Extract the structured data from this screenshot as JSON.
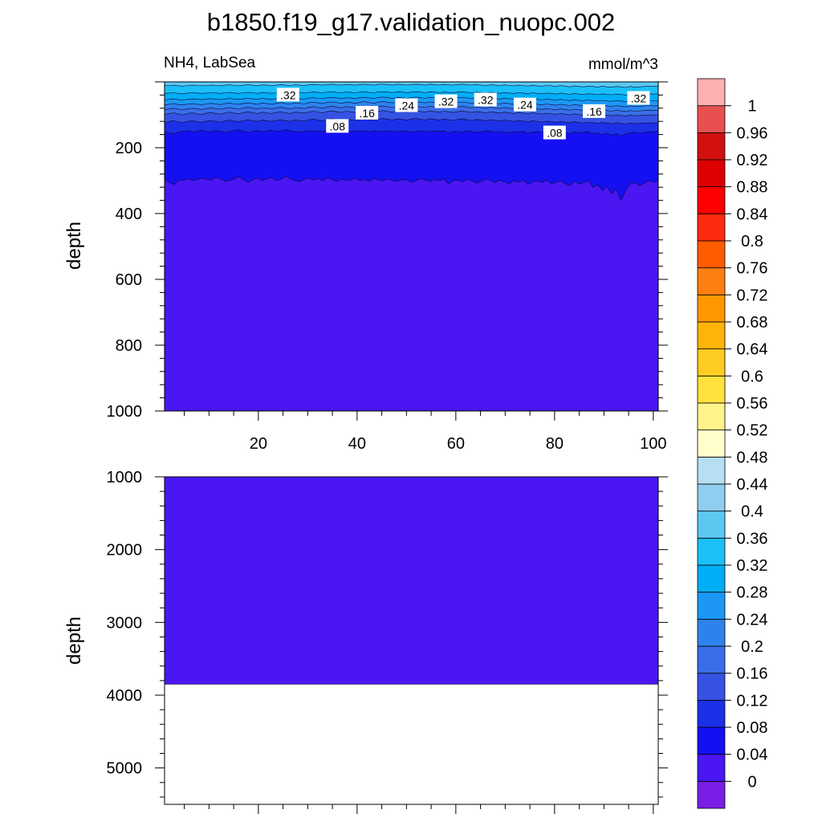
{
  "title": "b1850.f19_g17.validation_nuopc.002",
  "chart_data": [
    {
      "type": "contour",
      "panel": "upper",
      "left_label": "NH4, LabSea",
      "right_label": "mmol/m^3",
      "ylabel": "depth",
      "xlim": [
        1,
        101
      ],
      "ylim": [
        0,
        1000
      ],
      "y_reversed": true,
      "xticks": [
        20,
        40,
        60,
        80,
        100
      ],
      "yticks": [
        200,
        400,
        600,
        800,
        1000
      ],
      "contour_labels": [
        {
          "text": ".32",
          "x": 26,
          "depth": 40
        },
        {
          "text": ".16",
          "x": 42,
          "depth": 95
        },
        {
          "text": ".08",
          "x": 36,
          "depth": 135
        },
        {
          "text": ".24",
          "x": 50,
          "depth": 72
        },
        {
          "text": ".32",
          "x": 58,
          "depth": 60
        },
        {
          "text": ".32",
          "x": 66,
          "depth": 55
        },
        {
          "text": ".24",
          "x": 74,
          "depth": 70
        },
        {
          "text": ".08",
          "x": 80,
          "depth": 155
        },
        {
          "text": ".16",
          "x": 88,
          "depth": 90
        },
        {
          "text": ".32",
          "x": 97,
          "depth": 50
        }
      ],
      "band_lower_boundaries_depth": {
        "0.04": [
          295,
          305,
          312,
          300,
          298,
          295,
          300,
          297,
          292,
          296,
          298,
          290,
          294,
          302,
          300,
          295,
          288,
          297,
          305,
          296,
          292,
          300,
          294,
          290,
          300,
          296,
          287,
          295,
          300,
          303,
          296,
          292,
          298,
          294,
          300,
          290,
          297,
          303,
          295,
          300,
          298,
          293,
          300,
          296,
          302,
          294,
          298,
          300,
          295,
          300,
          303,
          296,
          298,
          305,
          300,
          294,
          298,
          302,
          296,
          300,
          295,
          310,
          300,
          298,
          304,
          296,
          300,
          308,
          302,
          295,
          300,
          306,
          298,
          304,
          310,
          300,
          305,
          298,
          312,
          304,
          300,
          306,
          298,
          310,
          305,
          300,
          308,
          315,
          302,
          310,
          306,
          300,
          320,
          312,
          330,
          318,
          340,
          325,
          360,
          330,
          310,
          305,
          315,
          308,
          300,
          305,
          300
        ],
        "0.08": [
          150,
          155,
          158,
          152,
          150,
          148,
          152,
          150,
          147,
          150,
          152,
          148,
          150,
          153,
          150,
          148,
          146,
          150,
          154,
          150,
          148,
          151,
          149,
          147,
          150,
          149,
          146,
          149,
          151,
          153,
          150,
          148,
          150,
          149,
          151,
          148,
          150,
          152,
          149,
          151,
          150,
          148,
          151,
          149,
          152,
          149,
          150,
          151,
          149,
          150,
          152,
          149,
          150,
          153,
          151,
          149,
          150,
          152,
          149,
          151,
          149,
          155,
          151,
          150,
          153,
          149,
          151,
          154,
          152,
          149,
          150,
          153,
          150,
          152,
          155,
          151,
          153,
          150,
          156,
          152,
          151,
          153,
          150,
          155,
          152,
          151,
          154,
          157,
          152,
          155,
          153,
          151,
          158,
          155,
          160,
          156,
          162,
          157,
          165,
          158,
          155,
          153,
          156,
          154,
          151,
          152,
          150
        ],
        "0.12": [
          125,
          120,
          118,
          122,
          124,
          120,
          118,
          121,
          123,
          119,
          117,
          120,
          122,
          118,
          116,
          119,
          121,
          117,
          115,
          118,
          120,
          116,
          118,
          120,
          117,
          115,
          118,
          120,
          116,
          117,
          119,
          115,
          113,
          116,
          118,
          114,
          112,
          115,
          117,
          113,
          115,
          117,
          114,
          112,
          115,
          117,
          113,
          111,
          114,
          116,
          112,
          114,
          116,
          113,
          111,
          114,
          116,
          112,
          114,
          116,
          113,
          115,
          117,
          114,
          112,
          115,
          117,
          114,
          116,
          118,
          115,
          117,
          119,
          116,
          118,
          120,
          117,
          119,
          121,
          118,
          120,
          122,
          119,
          121,
          123,
          120,
          122,
          124,
          121,
          123,
          125,
          122,
          124,
          126,
          123,
          125,
          127,
          124,
          126,
          128,
          125,
          127,
          126,
          125,
          124,
          125,
          124
        ],
        "0.16": [
          100,
          96,
          94,
          98,
          100,
          96,
          94,
          97,
          99,
          95,
          93,
          96,
          98,
          94,
          92,
          95,
          97,
          93,
          91,
          94,
          96,
          92,
          94,
          96,
          93,
          91,
          94,
          96,
          92,
          93,
          95,
          91,
          89,
          92,
          94,
          90,
          88,
          91,
          93,
          89,
          91,
          93,
          90,
          88,
          91,
          93,
          89,
          87,
          90,
          92,
          88,
          90,
          92,
          89,
          87,
          90,
          92,
          88,
          90,
          92,
          89,
          91,
          93,
          90,
          88,
          91,
          93,
          90,
          92,
          94,
          91,
          93,
          95,
          92,
          94,
          96,
          93,
          95,
          97,
          94,
          96,
          98,
          95,
          97,
          99,
          96,
          98,
          100,
          97,
          99,
          101,
          98,
          100,
          102,
          99,
          101,
          103,
          100,
          102,
          104,
          101,
          103,
          102,
          101,
          100,
          101,
          100
        ],
        "0.2": [
          85,
          82,
          80,
          83,
          85,
          82,
          80,
          82,
          84,
          81,
          79,
          82,
          83,
          80,
          78,
          81,
          83,
          79,
          77,
          80,
          82,
          78,
          80,
          82,
          79,
          77,
          80,
          82,
          78,
          79,
          81,
          77,
          75,
          78,
          80,
          76,
          74,
          77,
          79,
          75,
          77,
          79,
          76,
          74,
          77,
          79,
          75,
          73,
          76,
          78,
          74,
          76,
          78,
          75,
          73,
          76,
          78,
          74,
          76,
          78,
          75,
          77,
          79,
          76,
          74,
          77,
          79,
          76,
          78,
          80,
          77,
          79,
          81,
          78,
          80,
          82,
          79,
          81,
          83,
          80,
          82,
          84,
          81,
          83,
          85,
          82,
          84,
          86,
          83,
          85,
          87,
          84,
          86,
          88,
          85,
          87,
          89,
          86,
          88,
          90,
          87,
          89,
          88,
          87,
          86,
          87,
          86
        ],
        "0.24": [
          70,
          68,
          66,
          69,
          70,
          67,
          66,
          68,
          69,
          67,
          65,
          67,
          69,
          66,
          64,
          67,
          68,
          65,
          64,
          66,
          68,
          64,
          66,
          68,
          65,
          63,
          66,
          67,
          64,
          65,
          67,
          63,
          62,
          64,
          66,
          62,
          61,
          63,
          65,
          62,
          63,
          65,
          62,
          60,
          63,
          65,
          61,
          60,
          62,
          64,
          61,
          62,
          64,
          62,
          60,
          62,
          64,
          61,
          62,
          64,
          62,
          63,
          65,
          62,
          61,
          63,
          65,
          62,
          64,
          66,
          63,
          65,
          67,
          64,
          66,
          68,
          65,
          67,
          69,
          66,
          68,
          70,
          67,
          69,
          71,
          68,
          70,
          72,
          69,
          71,
          73,
          70,
          72,
          74,
          71,
          73,
          75,
          72,
          74,
          76,
          73,
          75,
          74,
          73,
          72,
          73,
          72
        ],
        "0.28": [
          55,
          53,
          52,
          54,
          55,
          53,
          52,
          53,
          54,
          52,
          51,
          53,
          54,
          52,
          50,
          52,
          53,
          51,
          50,
          52,
          53,
          50,
          52,
          53,
          51,
          49,
          51,
          52,
          50,
          51,
          52,
          49,
          48,
          50,
          51,
          48,
          47,
          49,
          51,
          48,
          49,
          51,
          48,
          47,
          49,
          50,
          47,
          46,
          48,
          50,
          47,
          48,
          50,
          48,
          46,
          48,
          50,
          47,
          48,
          50,
          48,
          49,
          51,
          48,
          47,
          49,
          51,
          48,
          50,
          52,
          49,
          51,
          52,
          50,
          51,
          53,
          50,
          52,
          54,
          51,
          53,
          55,
          52,
          54,
          56,
          53,
          55,
          57,
          54,
          56,
          57,
          55,
          57,
          58,
          56,
          58,
          59,
          57,
          58,
          60,
          57,
          59,
          58,
          57,
          56,
          57,
          56
        ],
        "0.32": [
          35,
          34,
          33,
          35,
          36,
          34,
          33,
          34,
          35,
          34,
          33,
          34,
          35,
          33,
          32,
          34,
          35,
          33,
          32,
          33,
          35,
          32,
          33,
          35,
          33,
          31,
          33,
          34,
          32,
          33,
          34,
          32,
          31,
          32,
          33,
          31,
          30,
          32,
          33,
          31,
          32,
          33,
          31,
          30,
          32,
          33,
          30,
          30,
          31,
          33,
          30,
          31,
          33,
          31,
          30,
          31,
          33,
          30,
          31,
          33,
          31,
          32,
          33,
          31,
          30,
          32,
          33,
          31,
          33,
          34,
          32,
          33,
          35,
          32,
          34,
          35,
          33,
          34,
          36,
          33,
          35,
          36,
          34,
          35,
          37,
          34,
          36,
          38,
          35,
          37,
          38,
          36,
          37,
          39,
          36,
          38,
          39,
          37,
          38,
          40,
          37,
          39,
          38,
          37,
          36,
          37,
          36
        ],
        "0.36": [
          12,
          11,
          10,
          12,
          13,
          11,
          10,
          11,
          12,
          11,
          10,
          11,
          12,
          10,
          9,
          11,
          12,
          10,
          9,
          10,
          12,
          9,
          10,
          12,
          10,
          8,
          10,
          11,
          9,
          10,
          11,
          9,
          8,
          9,
          10,
          8,
          7,
          9,
          10,
          8,
          9,
          10,
          8,
          7,
          9,
          10,
          7,
          7,
          8,
          10,
          7,
          8,
          10,
          8,
          7,
          8,
          10,
          7,
          8,
          10,
          8,
          9,
          10,
          8,
          7,
          9,
          10,
          8,
          10,
          11,
          9,
          10,
          12,
          9,
          11,
          12,
          10,
          11,
          13,
          10,
          12,
          13,
          11,
          12,
          14,
          11,
          13,
          15,
          12,
          14,
          15,
          13,
          14,
          16,
          13,
          15,
          16,
          14,
          15,
          17,
          14,
          16,
          15,
          14,
          13,
          14,
          13
        ]
      }
    },
    {
      "type": "contour",
      "panel": "lower",
      "ylabel": "depth",
      "xlim": [
        1,
        101
      ],
      "ylim": [
        1000,
        5500
      ],
      "y_reversed": true,
      "yticks": [
        1000,
        2000,
        3000,
        4000,
        5000
      ],
      "bottom_depth": 3850,
      "fill_value_band": "0"
    },
    {
      "type": "colorbar",
      "levels": [
        "0",
        "0.04",
        "0.08",
        "0.12",
        "0.16",
        "0.2",
        "0.24",
        "0.28",
        "0.32",
        "0.36",
        "0.4",
        "0.44",
        "0.48",
        "0.52",
        "0.56",
        "0.6",
        "0.64",
        "0.68",
        "0.72",
        "0.76",
        "0.8",
        "0.84",
        "0.88",
        "0.92",
        "0.96",
        "1"
      ],
      "colors": [
        "#7a1ee6",
        "#4a16f2",
        "#1410f2",
        "#1c30e8",
        "#3552e2",
        "#3a6ee8",
        "#2e82ee",
        "#1c98f4",
        "#00aef6",
        "#1cc0f8",
        "#5cc8f2",
        "#90cdee",
        "#b8def4",
        "#ffffcc",
        "#fff48a",
        "#ffe23c",
        "#ffcc22",
        "#ffb40a",
        "#ff9800",
        "#ff7e10",
        "#ff5c00",
        "#ff2a10",
        "#ff0000",
        "#de0000",
        "#d21010",
        "#e85050",
        "#ffb0b0"
      ]
    }
  ]
}
